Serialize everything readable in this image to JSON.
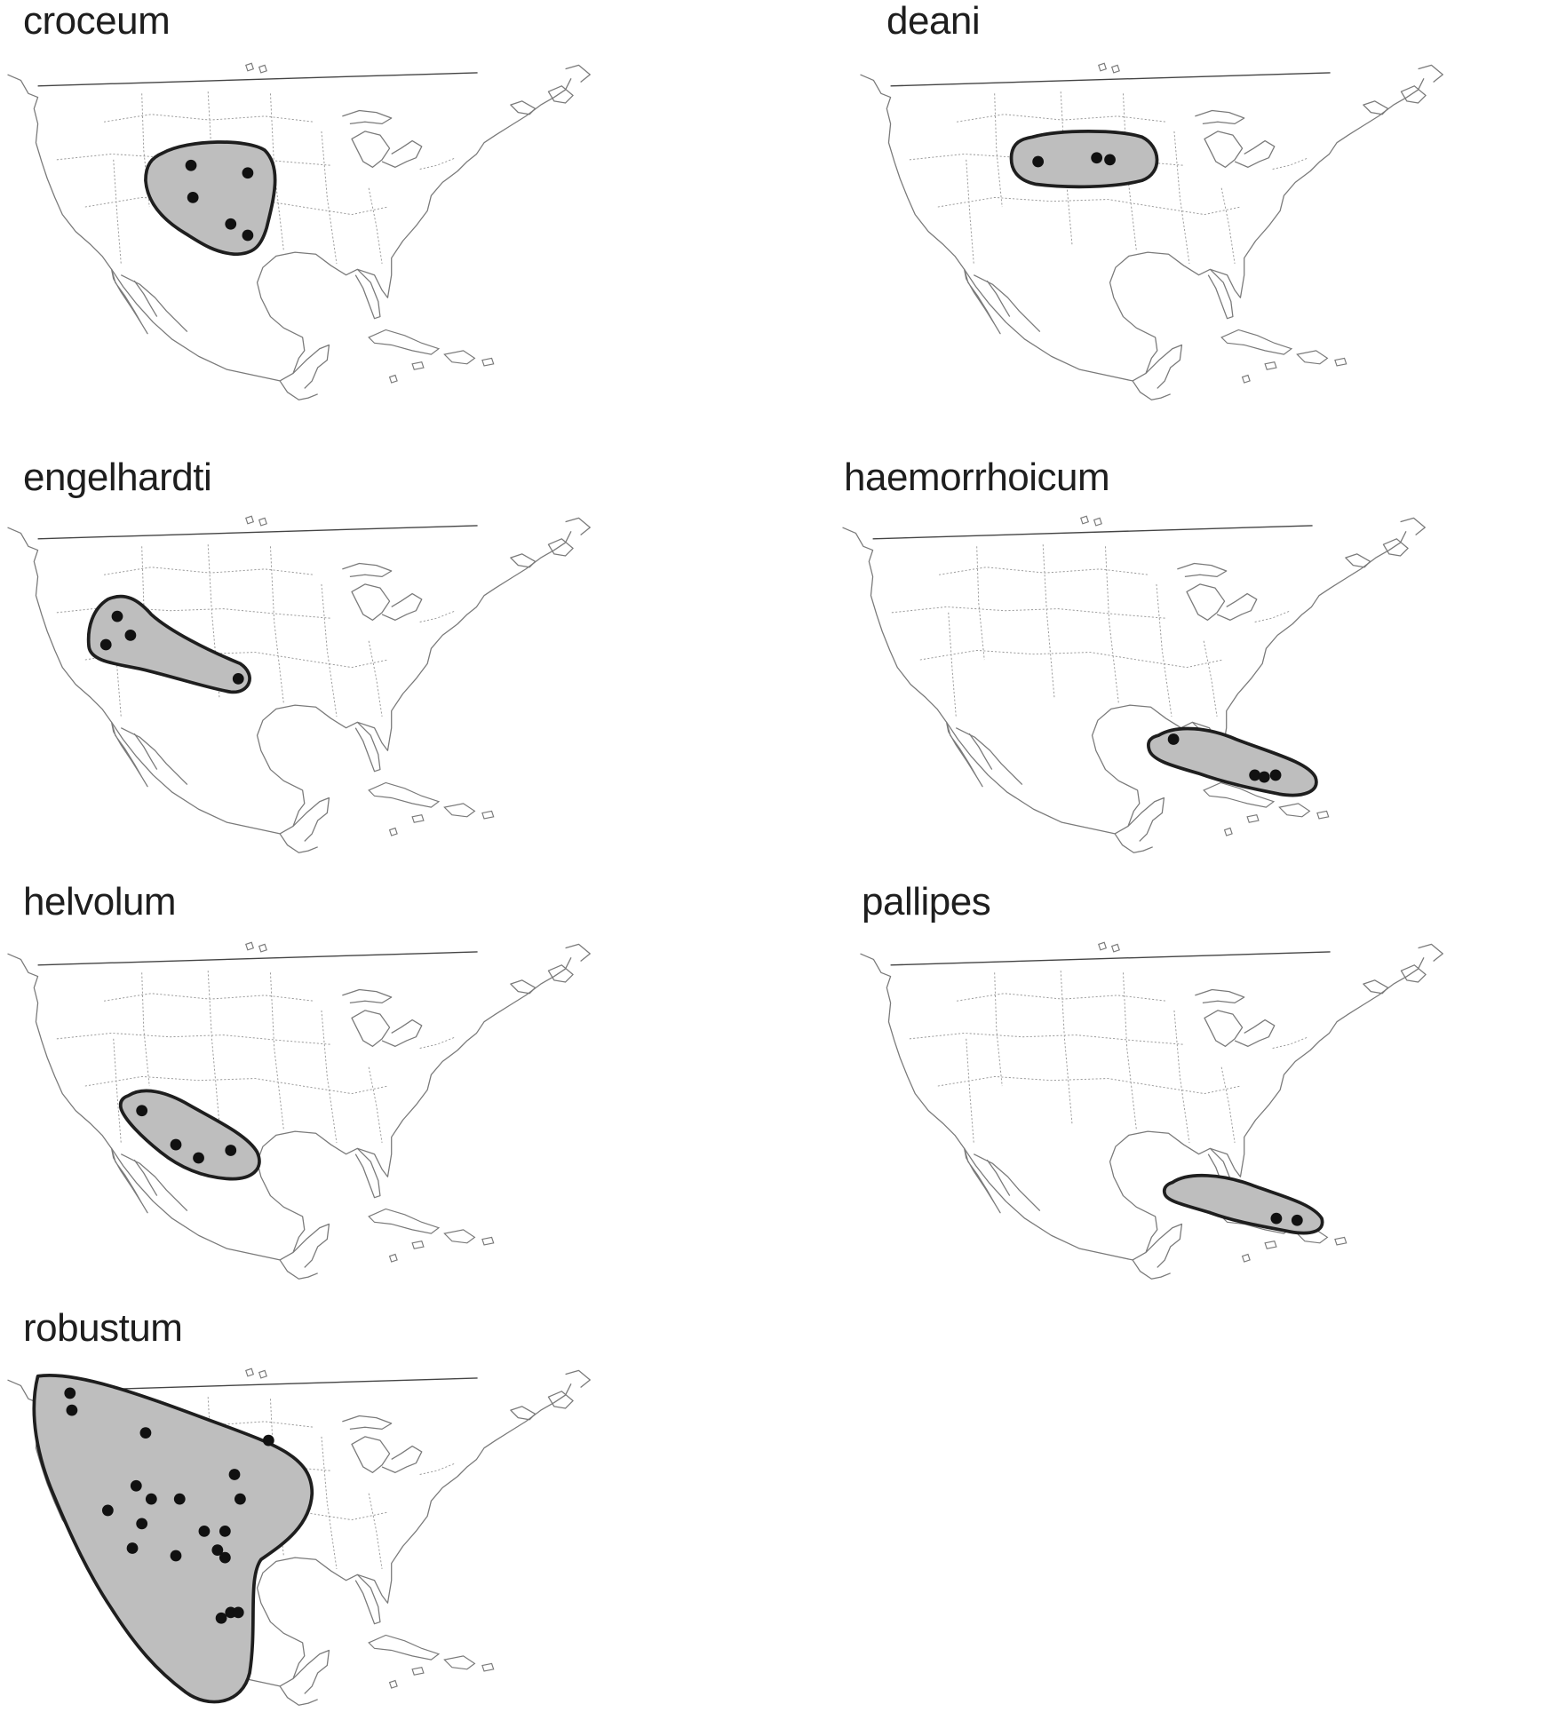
{
  "colors": {
    "range_fill": "#bebebe",
    "range_stroke": "#1e1e1e",
    "point": "#111111",
    "coastline": "#7a7a7a",
    "background": "#ffffff"
  },
  "panels": [
    {
      "id": "croceum",
      "title": "croceum"
    },
    {
      "id": "deani",
      "title": "deani"
    },
    {
      "id": "engelhardti",
      "title": "engelhardti"
    },
    {
      "id": "haemorrhoicum",
      "title": "haemorrhoicum"
    },
    {
      "id": "helvolum",
      "title": "helvolum"
    },
    {
      "id": "pallipes",
      "title": "pallipes"
    },
    {
      "id": "robustum",
      "title": "robustum"
    }
  ]
}
